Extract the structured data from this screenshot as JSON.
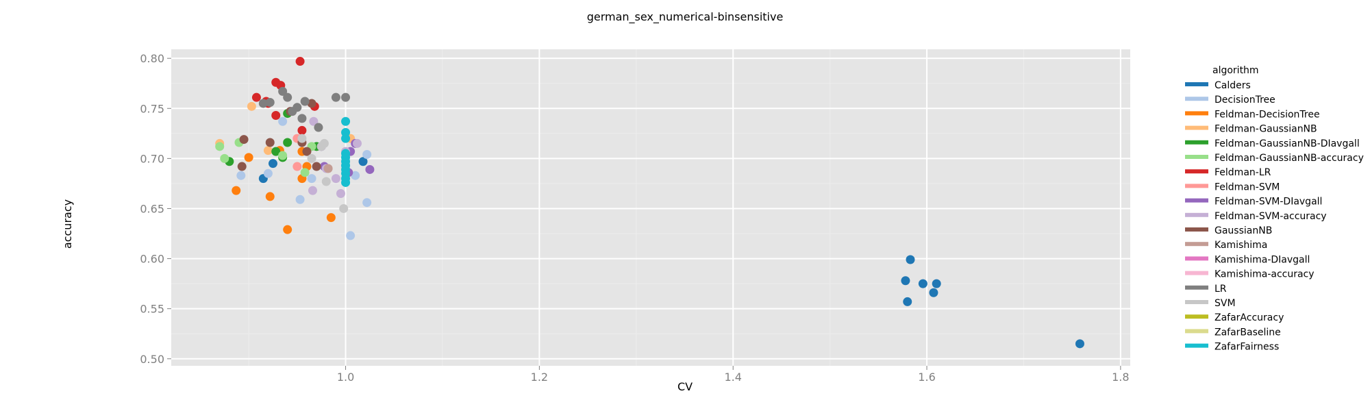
{
  "chart_data": {
    "type": "scatter",
    "title": "german_sex_numerical-binsensitive",
    "xlabel": "CV",
    "ylabel": "accuracy",
    "xlim": [
      0.82,
      1.81
    ],
    "ylim": [
      0.493,
      0.809
    ],
    "x_ticks": [
      1.0,
      1.2,
      1.4,
      1.6,
      1.8
    ],
    "y_ticks": [
      0.5,
      0.55,
      0.6,
      0.65,
      0.7,
      0.75,
      0.8
    ],
    "x_tick_labels": [
      "1.0",
      "1.2",
      "1.4",
      "1.6",
      "1.8"
    ],
    "y_tick_labels": [
      "0.50",
      "0.55",
      "0.60",
      "0.65",
      "0.70",
      "0.75",
      "0.80"
    ],
    "grid": true,
    "legend_title": "algorithm",
    "legend_position": "right",
    "series": [
      {
        "name": "Calders",
        "color": "#1f77b4",
        "points": [
          [
            0.915,
            0.68
          ],
          [
            0.925,
            0.695
          ],
          [
            1.018,
            0.697
          ],
          [
            1.583,
            0.599
          ],
          [
            1.578,
            0.578
          ],
          [
            1.58,
            0.557
          ],
          [
            1.596,
            0.575
          ],
          [
            1.61,
            0.575
          ],
          [
            1.607,
            0.566
          ],
          [
            1.758,
            0.515
          ]
        ]
      },
      {
        "name": "DecisionTree",
        "color": "#aec7e8",
        "points": [
          [
            0.892,
            0.683
          ],
          [
            0.935,
            0.737
          ],
          [
            0.92,
            0.685
          ],
          [
            0.953,
            0.659
          ],
          [
            1.005,
            0.623
          ],
          [
            1.022,
            0.656
          ],
          [
            1.01,
            0.683
          ],
          [
            1.022,
            0.704
          ],
          [
            0.965,
            0.68
          ]
        ]
      },
      {
        "name": "Feldman-DecisionTree",
        "color": "#ff7f0e",
        "points": [
          [
            0.887,
            0.668
          ],
          [
            0.922,
            0.662
          ],
          [
            0.94,
            0.629
          ],
          [
            0.985,
            0.641
          ],
          [
            0.955,
            0.68
          ],
          [
            0.96,
            0.692
          ],
          [
            0.955,
            0.707
          ],
          [
            0.9,
            0.701
          ],
          [
            0.932,
            0.708
          ]
        ]
      },
      {
        "name": "Feldman-GaussianNB",
        "color": "#ffbb78",
        "points": [
          [
            0.903,
            0.752
          ],
          [
            0.87,
            0.715
          ],
          [
            1.005,
            0.72
          ],
          [
            0.92,
            0.708
          ]
        ]
      },
      {
        "name": "Feldman-GaussianNB-DIavgall",
        "color": "#2ca02c",
        "points": [
          [
            0.928,
            0.707
          ],
          [
            0.94,
            0.716
          ],
          [
            0.935,
            0.701
          ],
          [
            0.88,
            0.697
          ],
          [
            0.97,
            0.712
          ],
          [
            0.94,
            0.745
          ]
        ]
      },
      {
        "name": "Feldman-GaussianNB-accuracy",
        "color": "#98df8a",
        "points": [
          [
            0.87,
            0.712
          ],
          [
            0.875,
            0.7
          ],
          [
            0.89,
            0.716
          ],
          [
            0.935,
            0.703
          ],
          [
            0.958,
            0.686
          ],
          [
            0.965,
            0.712
          ]
        ]
      },
      {
        "name": "Feldman-LR",
        "color": "#d62728",
        "points": [
          [
            0.953,
            0.797
          ],
          [
            0.928,
            0.776
          ],
          [
            0.933,
            0.773
          ],
          [
            0.908,
            0.761
          ],
          [
            0.918,
            0.757
          ],
          [
            0.92,
            0.755
          ],
          [
            0.928,
            0.743
          ],
          [
            0.955,
            0.728
          ],
          [
            0.968,
            0.752
          ]
        ]
      },
      {
        "name": "Feldman-SVM",
        "color": "#ff9896",
        "points": [
          [
            0.95,
            0.692
          ],
          [
            0.95,
            0.72
          ]
        ]
      },
      {
        "name": "Feldman-SVM-DIavgall",
        "color": "#9467bd",
        "points": [
          [
            1.025,
            0.689
          ],
          [
            1.01,
            0.715
          ],
          [
            1.005,
            0.707
          ],
          [
            0.978,
            0.692
          ],
          [
            1.003,
            0.686
          ],
          [
            0.975,
            0.712
          ]
        ]
      },
      {
        "name": "Feldman-SVM-accuracy",
        "color": "#c5b0d5",
        "points": [
          [
            0.966,
            0.668
          ],
          [
            0.99,
            0.68
          ],
          [
            0.995,
            0.665
          ],
          [
            0.98,
            0.69
          ],
          [
            0.967,
            0.737
          ],
          [
            1.0,
            0.707
          ],
          [
            1.012,
            0.715
          ]
        ]
      },
      {
        "name": "GaussianNB",
        "color": "#8c564b",
        "points": [
          [
            0.895,
            0.719
          ],
          [
            0.922,
            0.716
          ],
          [
            0.96,
            0.707
          ],
          [
            0.943,
            0.747
          ],
          [
            0.965,
            0.755
          ],
          [
            0.955,
            0.716
          ],
          [
            0.97,
            0.692
          ],
          [
            0.893,
            0.692
          ]
        ]
      },
      {
        "name": "Kamishima",
        "color": "#c49c94",
        "points": [
          [
            0.982,
            0.69
          ]
        ]
      },
      {
        "name": "Kamishima-DIavgall",
        "color": "#e377c2",
        "points": []
      },
      {
        "name": "Kamishima-accuracy",
        "color": "#f7b6d2",
        "points": []
      },
      {
        "name": "LR",
        "color": "#7f7f7f",
        "points": [
          [
            0.935,
            0.767
          ],
          [
            0.94,
            0.761
          ],
          [
            0.99,
            0.761
          ],
          [
            1.0,
            0.761
          ],
          [
            0.958,
            0.757
          ],
          [
            0.915,
            0.755
          ],
          [
            0.95,
            0.751
          ],
          [
            0.945,
            0.747
          ],
          [
            0.955,
            0.74
          ],
          [
            0.972,
            0.731
          ],
          [
            0.922,
            0.756
          ]
        ]
      },
      {
        "name": "SVM",
        "color": "#c7c7c7",
        "points": [
          [
            0.998,
            0.65
          ],
          [
            0.98,
            0.677
          ],
          [
            0.955,
            0.72
          ],
          [
            0.978,
            0.715
          ],
          [
            0.965,
            0.7
          ],
          [
            0.975,
            0.712
          ]
        ]
      },
      {
        "name": "ZafarAccuracy",
        "color": "#bcbd22",
        "points": []
      },
      {
        "name": "ZafarBaseline",
        "color": "#dbdb8d",
        "points": []
      },
      {
        "name": "ZafarFairness",
        "color": "#17becf",
        "points": [
          [
            1.0,
            0.737
          ],
          [
            1.0,
            0.726
          ],
          [
            1.0,
            0.72
          ],
          [
            1.0,
            0.701
          ],
          [
            1.0,
            0.697
          ],
          [
            1.0,
            0.693
          ],
          [
            1.0,
            0.689
          ],
          [
            1.0,
            0.685
          ],
          [
            1.0,
            0.68
          ],
          [
            1.0,
            0.676
          ],
          [
            1.0,
            0.705
          ]
        ]
      }
    ]
  }
}
